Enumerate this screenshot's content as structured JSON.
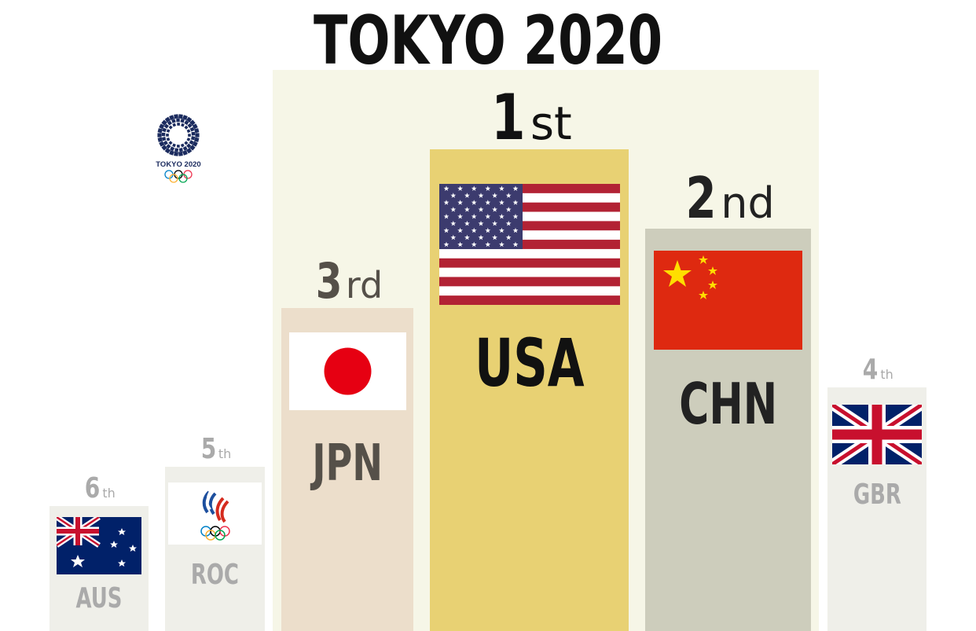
{
  "title": "TOKYO 2020",
  "logo": {
    "text": "TOKYO 2020",
    "icon": "tokyo-2020-emblem-icon"
  },
  "podium": [
    {
      "rank_num": "1",
      "rank_suffix": "st",
      "code": "USA",
      "flag_icon": "usa-flag-icon",
      "bar_color": "#e8d173"
    },
    {
      "rank_num": "2",
      "rank_suffix": "nd",
      "code": "CHN",
      "flag_icon": "china-flag-icon",
      "bar_color": "#cdcdbc"
    },
    {
      "rank_num": "3",
      "rank_suffix": "rd",
      "code": "JPN",
      "flag_icon": "japan-flag-icon",
      "bar_color": "#ecdecb"
    },
    {
      "rank_num": "4",
      "rank_suffix": "th",
      "code": "GBR",
      "flag_icon": "uk-flag-icon",
      "bar_color": "#efefe9"
    },
    {
      "rank_num": "5",
      "rank_suffix": "th",
      "code": "ROC",
      "flag_icon": "roc-emblem-icon",
      "bar_color": "#efefe9"
    },
    {
      "rank_num": "6",
      "rank_suffix": "th",
      "code": "AUS",
      "flag_icon": "australia-flag-icon",
      "bar_color": "#efefe9"
    }
  ],
  "colors": {
    "highlight_bg": "#f6f6e7",
    "title": "#111111",
    "rank_dark": "#222222",
    "rank_mid": "#555049",
    "rank_light": "#aaaaaa"
  }
}
